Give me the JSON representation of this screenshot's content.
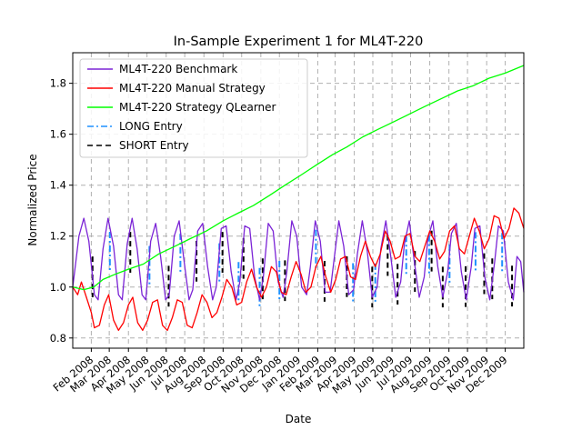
{
  "chart_data": {
    "type": "line",
    "title": "In-Sample Experiment 1 for ML4T-220",
    "xlabel": "Date",
    "ylabel": "Normalized Price",
    "xlim": [
      "2008-01-02",
      "2009-12-31"
    ],
    "ylim": [
      0.76,
      1.92
    ],
    "grid": true,
    "grid_style": "dashed",
    "legend_position": "upper-left",
    "yticks": [
      0.8,
      1.0,
      1.2,
      1.4,
      1.6,
      1.8
    ],
    "ytick_labels": [
      "0.8",
      "1.0",
      "1.2",
      "1.4",
      "1.6",
      "1.8"
    ],
    "xticks": [
      "2008-02-01",
      "2008-03-01",
      "2008-04-01",
      "2008-05-01",
      "2008-06-01",
      "2008-07-01",
      "2008-08-01",
      "2008-09-01",
      "2008-10-01",
      "2008-11-01",
      "2008-12-01",
      "2009-01-01",
      "2009-02-01",
      "2009-03-01",
      "2009-04-01",
      "2009-05-01",
      "2009-06-01",
      "2009-07-01",
      "2009-08-01",
      "2009-09-01",
      "2009-10-01",
      "2009-11-01",
      "2009-12-01"
    ],
    "xtick_labels": [
      "Feb 2008",
      "Mar 2008",
      "Apr 2008",
      "May 2008",
      "Jun 2008",
      "Jul 2008",
      "Aug 2008",
      "Sep 2008",
      "Oct 2008",
      "Nov 2008",
      "Dec 2008",
      "Jan 2009",
      "Feb 2009",
      "Mar 2009",
      "Apr 2009",
      "May 2009",
      "Jun 2009",
      "Jul 2009",
      "Aug 2009",
      "Sep 2009",
      "Oct 2009",
      "Nov 2009",
      "Dec 2009"
    ],
    "series": [
      {
        "name": "ML4T-220 Benchmark",
        "color": "#7b24d6",
        "style": "solid",
        "points": [
          [
            "2008-01-02",
            1.0
          ],
          [
            "2008-01-12",
            1.2
          ],
          [
            "2008-01-20",
            1.27
          ],
          [
            "2008-01-28",
            1.18
          ],
          [
            "2008-02-06",
            0.97
          ],
          [
            "2008-02-12",
            0.95
          ],
          [
            "2008-02-20",
            1.15
          ],
          [
            "2008-02-28",
            1.27
          ],
          [
            "2008-03-08",
            1.16
          ],
          [
            "2008-03-16",
            0.97
          ],
          [
            "2008-03-22",
            0.95
          ],
          [
            "2008-03-30",
            1.17
          ],
          [
            "2008-04-07",
            1.27
          ],
          [
            "2008-04-15",
            1.15
          ],
          [
            "2008-04-23",
            0.97
          ],
          [
            "2008-04-29",
            0.95
          ],
          [
            "2008-05-07",
            1.18
          ],
          [
            "2008-05-15",
            1.25
          ],
          [
            "2008-05-23",
            1.12
          ],
          [
            "2008-05-31",
            0.95
          ],
          [
            "2008-06-06",
            0.97
          ],
          [
            "2008-06-14",
            1.2
          ],
          [
            "2008-06-22",
            1.26
          ],
          [
            "2008-06-30",
            1.1
          ],
          [
            "2008-07-08",
            0.95
          ],
          [
            "2008-07-14",
            0.99
          ],
          [
            "2008-07-22",
            1.22
          ],
          [
            "2008-07-30",
            1.25
          ],
          [
            "2008-08-07",
            1.08
          ],
          [
            "2008-08-15",
            0.95
          ],
          [
            "2008-08-21",
            1.0
          ],
          [
            "2008-08-29",
            1.23
          ],
          [
            "2008-09-06",
            1.24
          ],
          [
            "2008-09-14",
            1.06
          ],
          [
            "2008-09-22",
            0.95
          ],
          [
            "2008-09-28",
            1.02
          ],
          [
            "2008-10-06",
            1.24
          ],
          [
            "2008-10-14",
            1.23
          ],
          [
            "2008-10-22",
            1.04
          ],
          [
            "2008-10-30",
            0.95
          ],
          [
            "2008-11-05",
            1.04
          ],
          [
            "2008-11-13",
            1.25
          ],
          [
            "2008-11-21",
            1.22
          ],
          [
            "2008-11-29",
            1.02
          ],
          [
            "2008-12-07",
            0.96
          ],
          [
            "2008-12-13",
            1.06
          ],
          [
            "2008-12-21",
            1.26
          ],
          [
            "2008-12-29",
            1.2
          ],
          [
            "2009-01-06",
            1.0
          ],
          [
            "2009-01-14",
            0.97
          ],
          [
            "2009-01-20",
            1.08
          ],
          [
            "2009-01-28",
            1.26
          ],
          [
            "2009-02-05",
            1.18
          ],
          [
            "2009-02-13",
            0.98
          ],
          [
            "2009-02-21",
            0.98
          ],
          [
            "2009-02-27",
            1.1
          ],
          [
            "2009-03-07",
            1.26
          ],
          [
            "2009-03-15",
            1.16
          ],
          [
            "2009-03-23",
            0.97
          ],
          [
            "2009-03-31",
            0.99
          ],
          [
            "2009-04-06",
            1.13
          ],
          [
            "2009-04-14",
            1.26
          ],
          [
            "2009-04-22",
            1.14
          ],
          [
            "2009-04-30",
            0.96
          ],
          [
            "2009-05-08",
            1.0
          ],
          [
            "2009-05-14",
            1.15
          ],
          [
            "2009-05-22",
            1.26
          ],
          [
            "2009-05-30",
            1.12
          ],
          [
            "2009-06-07",
            0.96
          ],
          [
            "2009-06-15",
            1.02
          ],
          [
            "2009-06-21",
            1.17
          ],
          [
            "2009-06-29",
            1.26
          ],
          [
            "2009-07-07",
            1.1
          ],
          [
            "2009-07-15",
            0.96
          ],
          [
            "2009-07-23",
            1.04
          ],
          [
            "2009-07-29",
            1.19
          ],
          [
            "2009-08-06",
            1.26
          ],
          [
            "2009-08-14",
            1.08
          ],
          [
            "2009-08-22",
            0.96
          ],
          [
            "2009-08-30",
            1.06
          ],
          [
            "2009-09-05",
            1.21
          ],
          [
            "2009-09-13",
            1.25
          ],
          [
            "2009-09-21",
            1.06
          ],
          [
            "2009-09-29",
            0.95
          ],
          [
            "2009-10-07",
            1.08
          ],
          [
            "2009-10-13",
            1.23
          ],
          [
            "2009-10-21",
            1.24
          ],
          [
            "2009-10-29",
            1.04
          ],
          [
            "2009-11-06",
            0.95
          ],
          [
            "2009-11-14",
            1.1
          ],
          [
            "2009-11-20",
            1.24
          ],
          [
            "2009-11-28",
            1.22
          ],
          [
            "2009-12-06",
            1.02
          ],
          [
            "2009-12-14",
            0.95
          ],
          [
            "2009-12-20",
            1.12
          ],
          [
            "2009-12-26",
            1.1
          ],
          [
            "2009-12-31",
            0.98
          ]
        ]
      },
      {
        "name": "ML4T-220 Manual Strategy",
        "color": "#ff0000",
        "style": "solid",
        "points": [
          [
            "2008-01-02",
            1.0
          ],
          [
            "2008-01-10",
            0.97
          ],
          [
            "2008-01-16",
            1.02
          ],
          [
            "2008-01-24",
            0.96
          ],
          [
            "2008-02-01",
            0.9
          ],
          [
            "2008-02-06",
            0.84
          ],
          [
            "2008-02-14",
            0.85
          ],
          [
            "2008-02-22",
            0.93
          ],
          [
            "2008-02-29",
            0.97
          ],
          [
            "2008-03-08",
            0.87
          ],
          [
            "2008-03-16",
            0.83
          ],
          [
            "2008-03-24",
            0.86
          ],
          [
            "2008-04-01",
            0.93
          ],
          [
            "2008-04-08",
            0.96
          ],
          [
            "2008-04-16",
            0.86
          ],
          [
            "2008-04-24",
            0.83
          ],
          [
            "2008-05-02",
            0.87
          ],
          [
            "2008-05-10",
            0.94
          ],
          [
            "2008-05-18",
            0.95
          ],
          [
            "2008-05-26",
            0.85
          ],
          [
            "2008-06-03",
            0.83
          ],
          [
            "2008-06-11",
            0.88
          ],
          [
            "2008-06-19",
            0.95
          ],
          [
            "2008-06-27",
            0.94
          ],
          [
            "2008-07-05",
            0.85
          ],
          [
            "2008-07-13",
            0.84
          ],
          [
            "2008-07-21",
            0.9
          ],
          [
            "2008-07-29",
            0.97
          ],
          [
            "2008-08-06",
            0.94
          ],
          [
            "2008-08-14",
            0.88
          ],
          [
            "2008-08-22",
            0.9
          ],
          [
            "2008-08-30",
            0.96
          ],
          [
            "2008-09-07",
            1.03
          ],
          [
            "2008-09-15",
            1.0
          ],
          [
            "2008-09-23",
            0.93
          ],
          [
            "2008-10-01",
            0.94
          ],
          [
            "2008-10-09",
            1.02
          ],
          [
            "2008-10-17",
            1.07
          ],
          [
            "2008-10-25",
            1.0
          ],
          [
            "2008-11-02",
            0.96
          ],
          [
            "2008-11-10",
            1.0
          ],
          [
            "2008-11-18",
            1.08
          ],
          [
            "2008-11-26",
            1.06
          ],
          [
            "2008-12-04",
            0.98
          ],
          [
            "2008-12-12",
            0.97
          ],
          [
            "2008-12-20",
            1.04
          ],
          [
            "2008-12-28",
            1.1
          ],
          [
            "2009-01-05",
            1.05
          ],
          [
            "2009-01-13",
            0.98
          ],
          [
            "2009-01-21",
            1.0
          ],
          [
            "2009-01-29",
            1.08
          ],
          [
            "2009-02-06",
            1.12
          ],
          [
            "2009-02-14",
            1.04
          ],
          [
            "2009-02-22",
            0.98
          ],
          [
            "2009-03-02",
            1.03
          ],
          [
            "2009-03-10",
            1.11
          ],
          [
            "2009-03-18",
            1.12
          ],
          [
            "2009-03-26",
            1.04
          ],
          [
            "2009-04-03",
            1.03
          ],
          [
            "2009-04-11",
            1.12
          ],
          [
            "2009-04-19",
            1.18
          ],
          [
            "2009-04-27",
            1.12
          ],
          [
            "2009-05-05",
            1.08
          ],
          [
            "2009-05-13",
            1.13
          ],
          [
            "2009-05-21",
            1.22
          ],
          [
            "2009-05-29",
            1.18
          ],
          [
            "2009-06-06",
            1.11
          ],
          [
            "2009-06-14",
            1.12
          ],
          [
            "2009-06-22",
            1.2
          ],
          [
            "2009-06-30",
            1.21
          ],
          [
            "2009-07-08",
            1.12
          ],
          [
            "2009-07-16",
            1.1
          ],
          [
            "2009-07-24",
            1.16
          ],
          [
            "2009-08-01",
            1.22
          ],
          [
            "2009-08-09",
            1.18
          ],
          [
            "2009-08-17",
            1.11
          ],
          [
            "2009-08-25",
            1.14
          ],
          [
            "2009-09-02",
            1.22
          ],
          [
            "2009-09-10",
            1.24
          ],
          [
            "2009-09-18",
            1.15
          ],
          [
            "2009-09-26",
            1.13
          ],
          [
            "2009-10-04",
            1.2
          ],
          [
            "2009-10-12",
            1.27
          ],
          [
            "2009-10-20",
            1.22
          ],
          [
            "2009-10-28",
            1.15
          ],
          [
            "2009-11-05",
            1.19
          ],
          [
            "2009-11-13",
            1.28
          ],
          [
            "2009-11-21",
            1.27
          ],
          [
            "2009-11-29",
            1.19
          ],
          [
            "2009-12-07",
            1.23
          ],
          [
            "2009-12-15",
            1.31
          ],
          [
            "2009-12-23",
            1.29
          ],
          [
            "2009-12-31",
            1.23
          ]
        ]
      },
      {
        "name": "ML4T-220 Strategy QLearner",
        "color": "#00ff00",
        "style": "solid",
        "points": [
          [
            "2008-01-02",
            1.0
          ],
          [
            "2008-01-20",
            0.99
          ],
          [
            "2008-02-05",
            1.0
          ],
          [
            "2008-02-20",
            1.03
          ],
          [
            "2008-03-10",
            1.05
          ],
          [
            "2008-04-01",
            1.07
          ],
          [
            "2008-04-25",
            1.09
          ],
          [
            "2008-05-20",
            1.13
          ],
          [
            "2008-06-15",
            1.16
          ],
          [
            "2008-07-10",
            1.19
          ],
          [
            "2008-08-05",
            1.22
          ],
          [
            "2008-09-01",
            1.26
          ],
          [
            "2008-09-25",
            1.29
          ],
          [
            "2008-10-20",
            1.32
          ],
          [
            "2008-11-15",
            1.36
          ],
          [
            "2008-12-10",
            1.4
          ],
          [
            "2009-01-05",
            1.44
          ],
          [
            "2009-01-30",
            1.48
          ],
          [
            "2009-02-25",
            1.52
          ],
          [
            "2009-03-20",
            1.55
          ],
          [
            "2009-04-15",
            1.59
          ],
          [
            "2009-05-10",
            1.62
          ],
          [
            "2009-06-05",
            1.65
          ],
          [
            "2009-06-30",
            1.68
          ],
          [
            "2009-07-25",
            1.71
          ],
          [
            "2009-08-20",
            1.74
          ],
          [
            "2009-09-15",
            1.77
          ],
          [
            "2009-10-10",
            1.79
          ],
          [
            "2009-11-05",
            1.82
          ],
          [
            "2009-12-01",
            1.84
          ],
          [
            "2009-12-31",
            1.87
          ]
        ]
      }
    ],
    "entry_marks": [
      {
        "name": "LONG Entry",
        "color": "#1e90ff",
        "style": "dash-dot",
        "dates": [
          "2008-03-02",
          "2008-05-05",
          "2008-06-24",
          "2008-08-26",
          "2008-09-26",
          "2008-10-30",
          "2008-12-01",
          "2009-01-29",
          "2009-03-30",
          "2009-05-05",
          "2009-06-24",
          "2009-07-31",
          "2009-09-02",
          "2009-10-14",
          "2009-11-26"
        ]
      },
      {
        "name": "SHORT Entry",
        "color": "#000000",
        "style": "dashed",
        "dates": [
          "2008-02-03",
          "2008-04-04",
          "2008-06-05",
          "2008-07-20",
          "2008-08-31",
          "2008-10-04",
          "2008-11-04",
          "2008-12-10",
          "2009-02-12",
          "2009-03-20",
          "2009-04-30",
          "2009-05-25",
          "2009-06-10",
          "2009-07-08",
          "2009-08-04",
          "2009-08-22",
          "2009-09-28",
          "2009-10-28",
          "2009-11-10",
          "2009-12-12"
        ]
      }
    ]
  }
}
